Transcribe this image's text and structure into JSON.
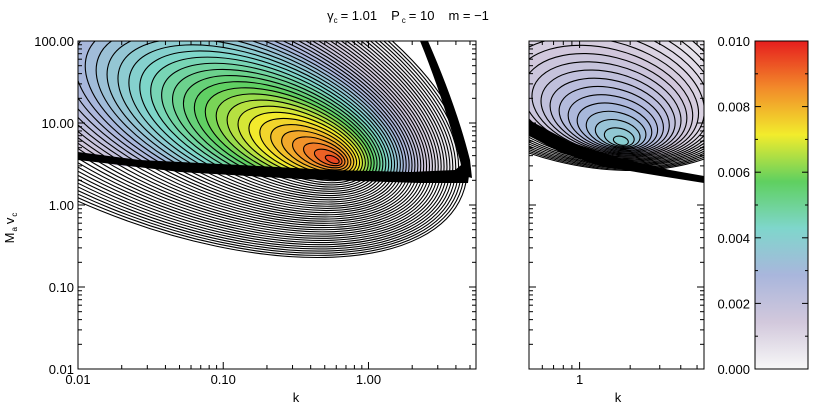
{
  "chart_data": {
    "type": "heatmap",
    "title": {
      "gamma_sym": "γ",
      "gamma_sub": "c",
      "gamma_val": "= 1.01",
      "p_sym": "P",
      "p_sub": "c",
      "p_val": "= 10",
      "m_text": "m = −1"
    },
    "ylabel": {
      "m": "M",
      "m_sub": "a",
      "v": "v",
      "v_sub": "c"
    },
    "left_panel": {
      "xlabel": "k",
      "xscale": "log",
      "yscale": "log",
      "xlim": [
        0.01,
        5.5
      ],
      "ylim": [
        0.01,
        100
      ],
      "x_ticks": [
        {
          "value": 0.01,
          "label": "0.01"
        },
        {
          "value": 0.1,
          "label": "0.10"
        },
        {
          "value": 1,
          "label": "1.00"
        }
      ],
      "y_ticks": [
        {
          "value": 0.01,
          "label": "0.01"
        },
        {
          "value": 0.1,
          "label": "0.10"
        },
        {
          "value": 1,
          "label": "1.00"
        },
        {
          "value": 10,
          "label": "10.00"
        },
        {
          "value": 100,
          "label": "100.00"
        }
      ],
      "peak": {
        "k": 0.6,
        "v": 3.4,
        "value": 0.0098
      },
      "contour_levels": 45
    },
    "right_panel": {
      "xlabel": "k",
      "xscale": "log",
      "yscale": "log",
      "xlim": [
        0.5,
        5.5
      ],
      "ylim": [
        0.01,
        100
      ],
      "x_ticks": [
        {
          "value": 1,
          "label": "1"
        }
      ],
      "peak": {
        "k": 1.8,
        "v": 5.5,
        "value": 0.0042
      },
      "contour_levels": 25
    },
    "colorbar": {
      "range": [
        0,
        0.01
      ],
      "ticks": [
        {
          "value": 0.0,
          "label": "0.000"
        },
        {
          "value": 0.002,
          "label": "0.002"
        },
        {
          "value": 0.004,
          "label": "0.004"
        },
        {
          "value": 0.006,
          "label": "0.006"
        },
        {
          "value": 0.008,
          "label": "0.008"
        },
        {
          "value": 0.01,
          "label": "0.010"
        }
      ],
      "colors": [
        "#f7f7f7",
        "#d2c8dc",
        "#a9b6dc",
        "#7fd6cc",
        "#5fd060",
        "#f2ec2c",
        "#f28a2a",
        "#e61e1e"
      ]
    }
  }
}
